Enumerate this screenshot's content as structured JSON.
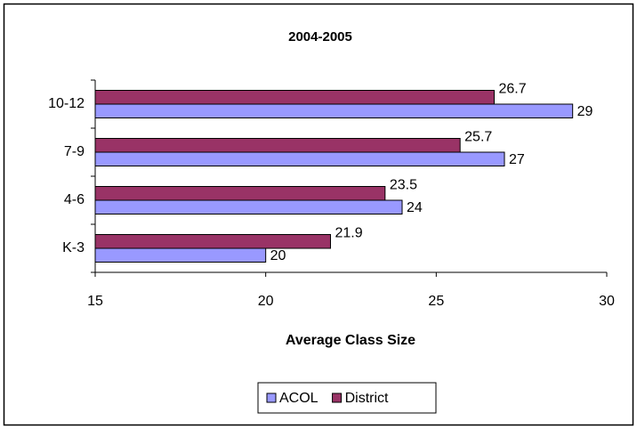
{
  "chart_data": {
    "type": "hbar",
    "title": "2004-2005",
    "x_label": "Average Class Size",
    "categories": [
      "K-3",
      "4-6",
      "7-9",
      "10-12"
    ],
    "series": [
      {
        "name": "ACOL",
        "color": "#9999ff",
        "values": [
          20,
          24,
          27,
          29
        ]
      },
      {
        "name": "District",
        "color": "#993366",
        "values": [
          21.9,
          23.5,
          25.7,
          26.7
        ]
      }
    ],
    "xlim": [
      15,
      30
    ],
    "xticks": [
      15,
      20,
      25,
      30
    ],
    "legend": "bottom"
  }
}
